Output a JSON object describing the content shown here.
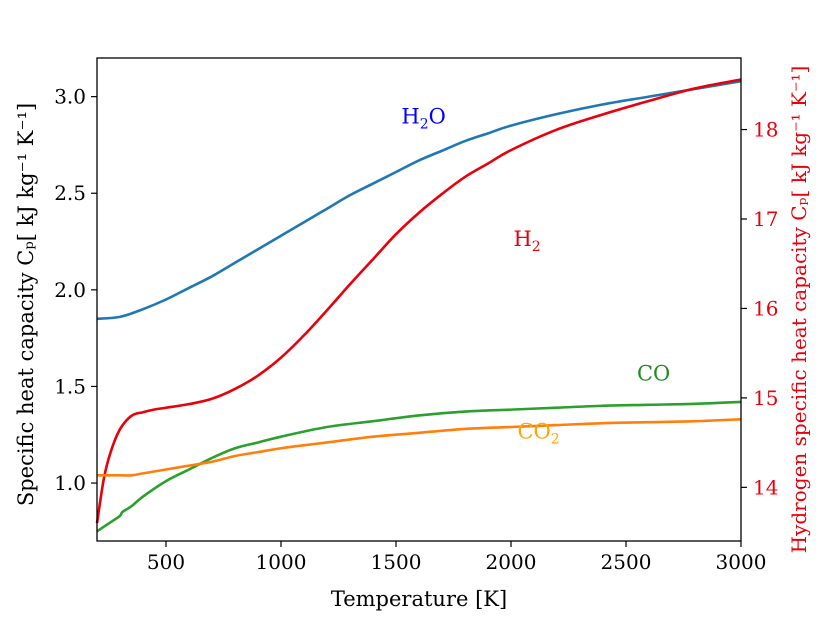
{
  "chart_data": {
    "type": "line",
    "title": "",
    "xlabel": "Temperature [K]",
    "ylabel": "Specific heat capacity Cₚ[ kJ kg⁻¹ K⁻¹]",
    "y2label": "Hydrogen specific heat capacity Cₚ[ kJ kg⁻¹ K⁻¹]",
    "xlim": [
      200,
      3000
    ],
    "ylim": [
      0.7,
      3.2
    ],
    "y2lim": [
      13.4,
      18.8
    ],
    "xticks": [
      500,
      1000,
      1500,
      2000,
      2500,
      3000
    ],
    "xtick_labels": [
      "500",
      "1000",
      "1500",
      "2000",
      "2500",
      "3000"
    ],
    "yticks": [
      1.0,
      1.5,
      2.0,
      2.5,
      3.0
    ],
    "ytick_labels": [
      "1.0",
      "1.5",
      "2.0",
      "2.5",
      "3.0"
    ],
    "y2ticks": [
      14,
      15,
      16,
      17,
      18
    ],
    "y2tick_labels": [
      "14",
      "15",
      "16",
      "17",
      "18"
    ],
    "grid": false,
    "legend": "none",
    "right_axis_color": "#e8000b",
    "series": [
      {
        "name": "H2O",
        "label_main": "H",
        "label_sub": "2",
        "label_tail": "O",
        "axis": "left",
        "color": "#1f77b4",
        "label_color": "#0000ff",
        "label_pos": [
          1620,
          2.86
        ],
        "x": [
          200,
          300,
          400,
          500,
          600,
          700,
          800,
          900,
          1000,
          1100,
          1200,
          1300,
          1400,
          1500,
          1600,
          1700,
          1800,
          1900,
          2000,
          2200,
          2400,
          2600,
          2800,
          3000
        ],
        "y": [
          1.85,
          1.86,
          1.9,
          1.95,
          2.01,
          2.07,
          2.14,
          2.21,
          2.28,
          2.35,
          2.42,
          2.49,
          2.55,
          2.61,
          2.67,
          2.72,
          2.77,
          2.81,
          2.85,
          2.91,
          2.96,
          3.0,
          3.04,
          3.08
        ]
      },
      {
        "name": "H2",
        "label_main": "H",
        "label_sub": "2",
        "label_tail": "",
        "axis": "right",
        "color": "#e8000b",
        "label_color": "#e8000b",
        "label_pos": [
          2070,
          16.7
        ],
        "x": [
          200,
          230,
          260,
          300,
          350,
          400,
          450,
          500,
          600,
          700,
          800,
          900,
          1000,
          1100,
          1200,
          1300,
          1400,
          1500,
          1600,
          1700,
          1800,
          1900,
          2000,
          2200,
          2400,
          2600,
          2800,
          3000
        ],
        "y": [
          13.6,
          14.1,
          14.4,
          14.65,
          14.8,
          14.84,
          14.87,
          14.89,
          14.93,
          14.99,
          15.1,
          15.25,
          15.45,
          15.7,
          15.98,
          16.27,
          16.55,
          16.83,
          17.07,
          17.28,
          17.47,
          17.62,
          17.77,
          18.0,
          18.17,
          18.32,
          18.46,
          18.56
        ]
      },
      {
        "name": "CO",
        "label_main": "CO",
        "label_sub": "",
        "label_tail": "",
        "axis": "left",
        "color": "#2ca02c",
        "label_color": "#228b22",
        "label_pos": [
          2620,
          1.53
        ],
        "x": [
          200,
          250,
          300,
          310,
          350,
          400,
          500,
          600,
          700,
          800,
          900,
          1000,
          1200,
          1400,
          1600,
          1800,
          2000,
          2200,
          2400,
          2600,
          2800,
          3000
        ],
        "y": [
          0.75,
          0.79,
          0.83,
          0.85,
          0.88,
          0.93,
          1.01,
          1.07,
          1.13,
          1.18,
          1.21,
          1.24,
          1.29,
          1.32,
          1.35,
          1.37,
          1.38,
          1.39,
          1.4,
          1.405,
          1.41,
          1.42
        ]
      },
      {
        "name": "CO2",
        "label_main": "CO",
        "label_sub": "2",
        "label_tail": "",
        "axis": "left",
        "color": "#ff7f0e",
        "label_color": "#ffa500",
        "label_pos": [
          2120,
          1.23
        ],
        "x": [
          200,
          300,
          350,
          400,
          500,
          600,
          700,
          800,
          900,
          1000,
          1200,
          1400,
          1600,
          1800,
          2000,
          2200,
          2400,
          2600,
          2800,
          3000
        ],
        "y": [
          1.04,
          1.04,
          1.04,
          1.05,
          1.07,
          1.09,
          1.11,
          1.14,
          1.16,
          1.18,
          1.21,
          1.24,
          1.26,
          1.28,
          1.29,
          1.3,
          1.31,
          1.315,
          1.32,
          1.33
        ]
      }
    ]
  }
}
